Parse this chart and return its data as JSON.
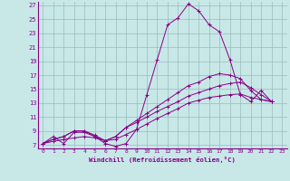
{
  "xlabel": "Windchill (Refroidissement éolien,°C)",
  "background_color": "#c8e8e8",
  "line_color": "#880088",
  "grid_color": "#99bbbb",
  "xlim": [
    -0.5,
    23.5
  ],
  "ylim": [
    6.5,
    27.5
  ],
  "yticks": [
    7,
    9,
    11,
    13,
    15,
    17,
    19,
    21,
    23,
    25,
    27
  ],
  "xticks": [
    0,
    1,
    2,
    3,
    4,
    5,
    6,
    7,
    8,
    9,
    10,
    11,
    12,
    13,
    14,
    15,
    16,
    17,
    18,
    19,
    20,
    21,
    22,
    23
  ],
  "series": [
    [
      7.2,
      8.2,
      7.2,
      8.8,
      8.8,
      8.2,
      7.2,
      6.8,
      7.2,
      9.2,
      14.2,
      19.2,
      24.2,
      25.2,
      27.2,
      26.2,
      24.2,
      23.2,
      19.2,
      14.2,
      13.2,
      14.8,
      13.2
    ],
    [
      7.2,
      7.8,
      8.2,
      9.0,
      9.0,
      8.2,
      7.6,
      8.2,
      9.5,
      10.5,
      11.5,
      12.5,
      13.5,
      14.5,
      15.5,
      16.0,
      16.8,
      17.2,
      17.0,
      16.5,
      14.8,
      13.5,
      13.2
    ],
    [
      7.2,
      7.8,
      8.2,
      9.0,
      9.0,
      8.4,
      7.6,
      8.2,
      9.5,
      10.2,
      11.0,
      11.8,
      12.5,
      13.2,
      14.0,
      14.5,
      15.0,
      15.5,
      15.8,
      16.0,
      15.2,
      14.2,
      13.2
    ],
    [
      7.2,
      7.5,
      7.8,
      8.0,
      8.2,
      8.0,
      7.6,
      7.8,
      8.5,
      9.2,
      10.0,
      10.8,
      11.5,
      12.2,
      13.0,
      13.4,
      13.8,
      14.0,
      14.2,
      14.3,
      13.8,
      13.5,
      13.2
    ]
  ]
}
